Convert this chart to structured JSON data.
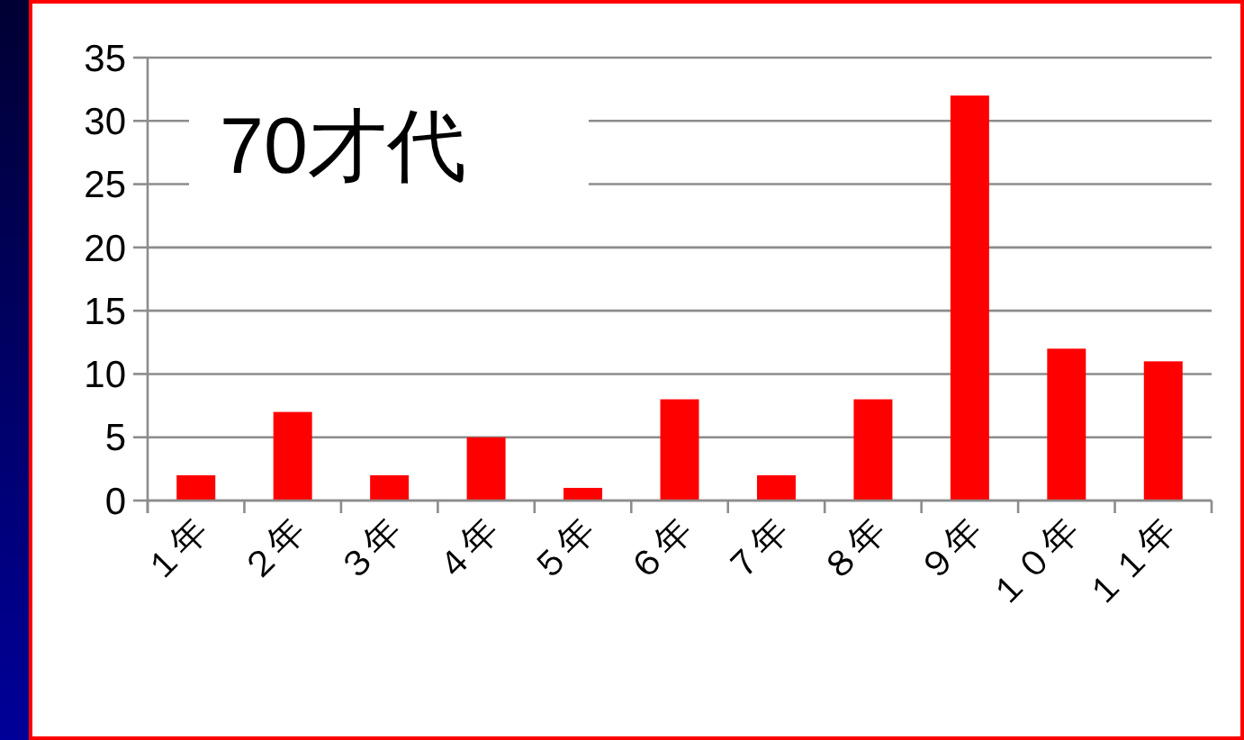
{
  "chart_data": {
    "type": "bar",
    "title": "70才代",
    "categories": [
      "１年",
      "２年",
      "３年",
      "４年",
      "５年",
      "６年",
      "７年",
      "８年",
      "９年",
      "１０年",
      "１１年"
    ],
    "values": [
      2,
      7,
      2,
      5,
      1,
      8,
      2,
      8,
      32,
      12,
      11
    ],
    "color": "#ff0000",
    "ylim": [
      0,
      35
    ],
    "yticks": [
      0,
      5,
      10,
      15,
      20,
      25,
      30,
      35
    ],
    "grid": "y"
  }
}
